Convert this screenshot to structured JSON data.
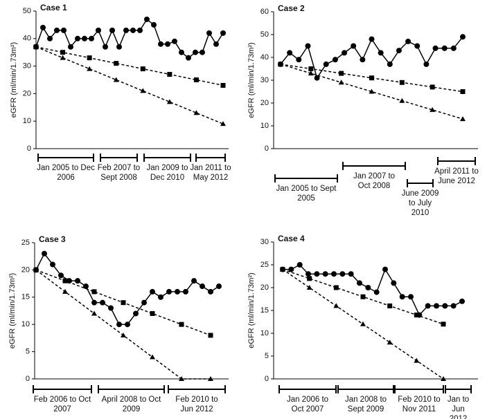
{
  "chart_data": [
    {
      "type": "line",
      "title": "Case 1",
      "ylabel": "eGFR (ml/min/1.73m²)",
      "ylim": [
        0,
        50
      ],
      "yticks": [
        0,
        10,
        20,
        30,
        40,
        50
      ],
      "series": [
        {
          "color": "#000",
          "marker": "circle",
          "dashed": false,
          "values": [
            37,
            44,
            40,
            43,
            43,
            37,
            40,
            40,
            40,
            43,
            37,
            43,
            37,
            43,
            43,
            43,
            47,
            45,
            38,
            38,
            39,
            35,
            33,
            35,
            35,
            42,
            38,
            42
          ]
        },
        {
          "color": "#000",
          "marker": "square",
          "dashed": true,
          "values": [
            37,
            35,
            33,
            31,
            29,
            27,
            25,
            23
          ]
        },
        {
          "color": "#000",
          "marker": "triangle",
          "dashed": true,
          "values": [
            37,
            33,
            29,
            25,
            21,
            17,
            13,
            9
          ]
        }
      ],
      "periods": [
        "Jan 2005 to Dec 2006",
        "Feb 2007 to Sept 2008",
        "Jan 2009 to Dec 2010",
        "Jan 2011 to May 2012"
      ]
    },
    {
      "type": "line",
      "title": "Case 2",
      "ylabel": "eGFR (ml/min/1.73m²)",
      "ylim": [
        0,
        60
      ],
      "yticks": [
        0,
        10,
        20,
        30,
        40,
        50,
        60
      ],
      "series": [
        {
          "color": "#000",
          "marker": "circle",
          "dashed": false,
          "values": [
            37,
            42,
            39,
            45,
            31,
            37,
            39,
            42,
            45,
            39,
            48,
            42,
            37,
            43,
            47,
            45,
            37,
            44,
            44,
            44,
            49
          ]
        },
        {
          "color": "#000",
          "marker": "square",
          "dashed": true,
          "values": [
            37,
            35,
            33,
            31,
            29,
            27,
            25
          ]
        },
        {
          "color": "#000",
          "marker": "triangle",
          "dashed": true,
          "values": [
            37,
            33,
            29,
            25,
            21,
            17,
            13
          ]
        }
      ],
      "periods": [
        "Jan 2005 to Sept 2005",
        "Jan 2007 to Oct 2008",
        "June 2009 to July 2010",
        "April 2011 to June 2012"
      ]
    },
    {
      "type": "line",
      "title": "Case 3",
      "ylabel": "eGFR (ml/min/1.73m²)",
      "ylim": [
        0,
        25
      ],
      "yticks": [
        0,
        5,
        10,
        15,
        20,
        25
      ],
      "series": [
        {
          "color": "#000",
          "marker": "circle",
          "dashed": false,
          "values": [
            20,
            23,
            21,
            19,
            18,
            18,
            17,
            14,
            14,
            13,
            10,
            10,
            12,
            14,
            16,
            15,
            16,
            16,
            16,
            18,
            17,
            16,
            17
          ]
        },
        {
          "color": "#000",
          "marker": "square",
          "dashed": true,
          "values": [
            20,
            18,
            16,
            14,
            12,
            10,
            8
          ]
        },
        {
          "color": "#000",
          "marker": "triangle",
          "dashed": true,
          "values": [
            20,
            16,
            12,
            8,
            4,
            0,
            0
          ]
        }
      ],
      "periods": [
        "Feb 2006 to Oct 2007",
        "April 2008 to Oct 2009",
        "Feb 2010 to Jun 2012"
      ]
    },
    {
      "type": "line",
      "title": "Case 4",
      "ylabel": "eGFR (ml/min/1.73m²)",
      "ylim": [
        0,
        30
      ],
      "yticks": [
        0,
        5,
        10,
        15,
        20,
        25,
        30
      ],
      "series": [
        {
          "color": "#000",
          "marker": "circle",
          "dashed": false,
          "values": [
            24,
            24,
            25,
            23,
            23,
            23,
            23,
            23,
            23,
            21,
            20,
            19,
            24,
            21,
            18,
            18,
            14,
            16,
            16,
            16,
            16,
            17
          ]
        },
        {
          "color": "#000",
          "marker": "square",
          "dashed": true,
          "values": [
            24,
            22,
            20,
            18,
            16,
            14,
            12
          ]
        },
        {
          "color": "#000",
          "marker": "triangle",
          "dashed": true,
          "values": [
            24,
            20,
            16,
            12,
            8,
            4,
            0
          ]
        }
      ],
      "periods": [
        "Jan 2006 to Oct 2007",
        "Jan 2008 to Sept 2009",
        "Feb 2010 to Nov 2011",
        "Jan to Jun 2012"
      ]
    }
  ]
}
